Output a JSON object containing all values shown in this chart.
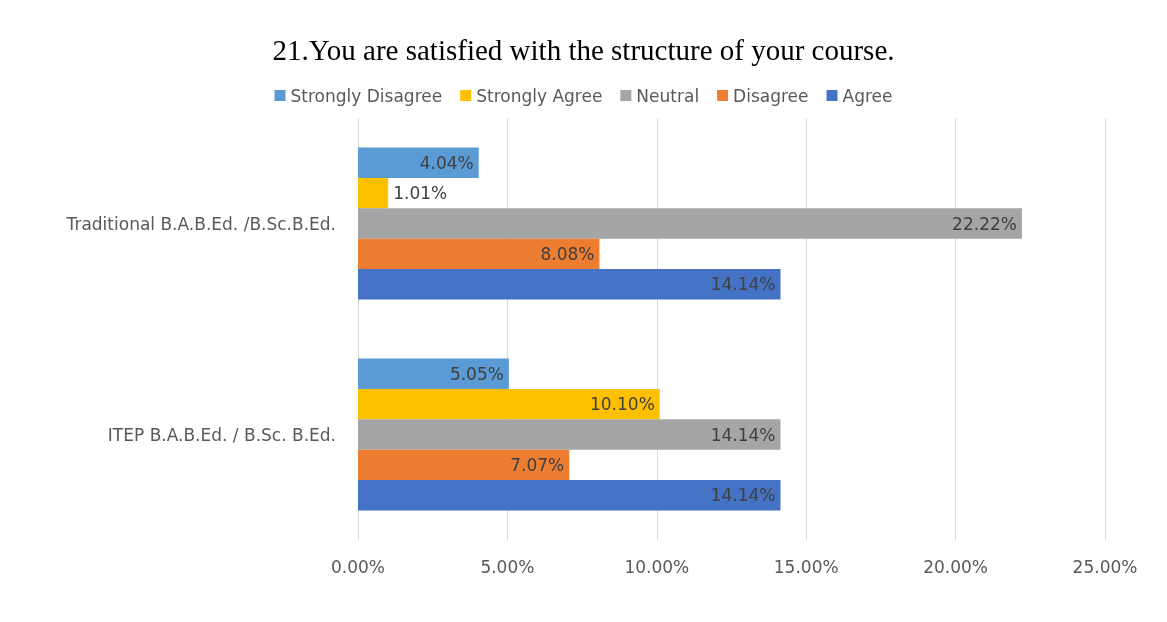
{
  "chart_data": {
    "type": "bar",
    "orientation": "horizontal",
    "title": "21.You are satisfied with the structure of your course.",
    "categories": [
      "Traditional B.A.B.Ed. /B.Sc.B.Ed.",
      "ITEP B.A.B.Ed. / B.Sc. B.Ed."
    ],
    "series": [
      {
        "name": "Strongly Disagree",
        "color": "#5b9bd5",
        "values": [
          4.04,
          5.05
        ],
        "value_labels": [
          "4.04%",
          "5.05%"
        ]
      },
      {
        "name": "Strongly Agree",
        "color": "#ffc000",
        "values": [
          1.01,
          10.1
        ],
        "value_labels": [
          "1.01%",
          "10.10%"
        ]
      },
      {
        "name": "Neutral",
        "color": "#a5a5a5",
        "values": [
          22.22,
          14.14
        ],
        "value_labels": [
          "22.22%",
          "14.14%"
        ]
      },
      {
        "name": "Disagree",
        "color": "#ed7d31",
        "values": [
          8.08,
          7.07
        ],
        "value_labels": [
          "8.08%",
          "7.07%"
        ]
      },
      {
        "name": "Agree",
        "color": "#4472c4",
        "values": [
          14.14,
          14.14
        ],
        "value_labels": [
          "14.14%",
          "14.14%"
        ]
      }
    ],
    "xlim": [
      0,
      25
    ],
    "xticks": [
      {
        "value": 0,
        "label": "0.00%"
      },
      {
        "value": 5,
        "label": "5.00%"
      },
      {
        "value": 10,
        "label": "10.00%"
      },
      {
        "value": 15,
        "label": "15.00%"
      },
      {
        "value": 20,
        "label": "20.00%"
      },
      {
        "value": 25,
        "label": "25.00%"
      }
    ],
    "grid": "x",
    "legend": "top"
  }
}
